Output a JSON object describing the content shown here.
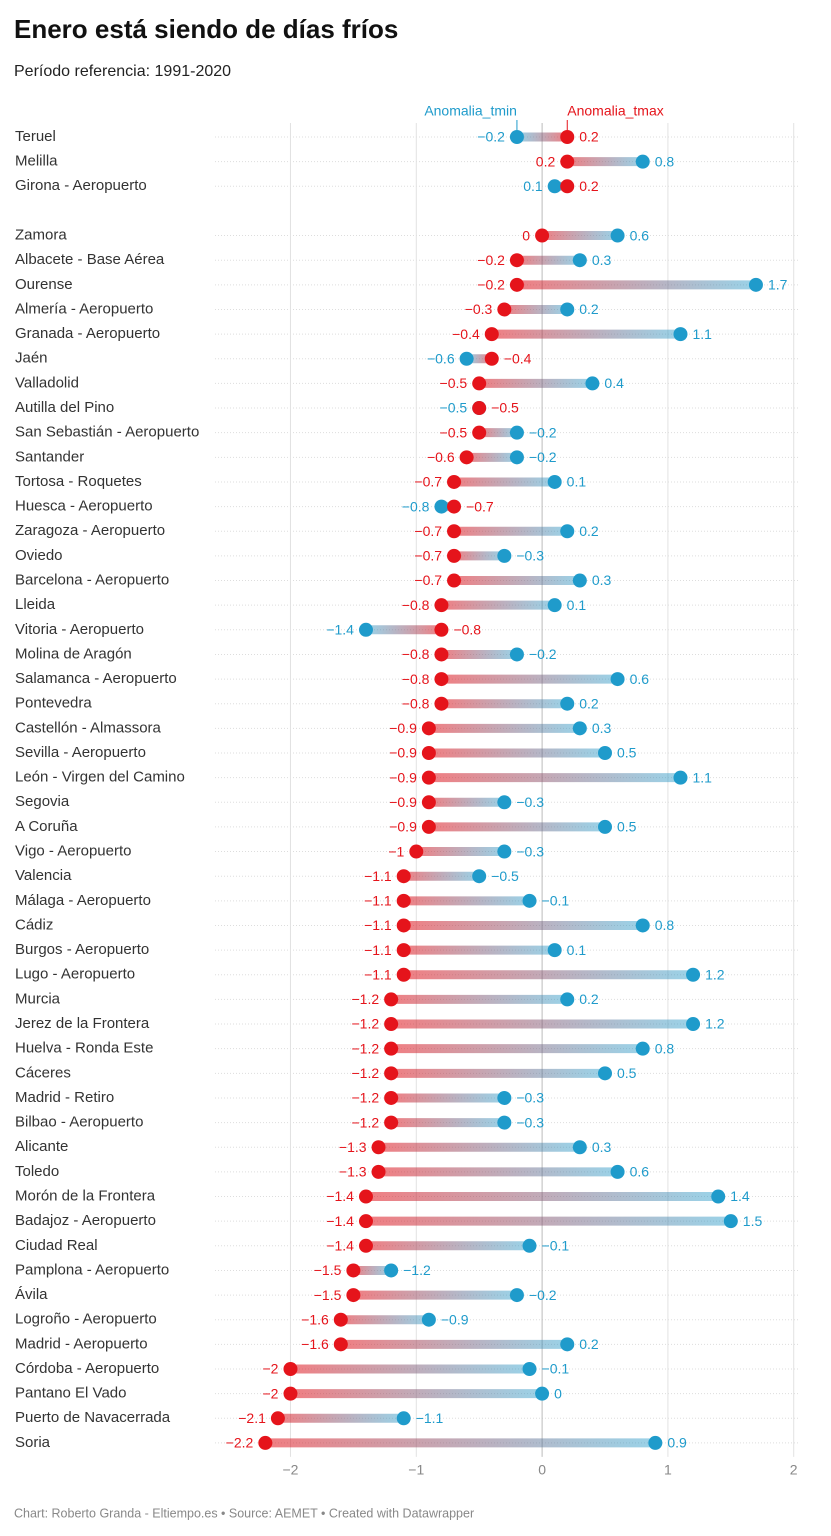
{
  "chart_data": {
    "type": "dumbbell",
    "title": "Enero está siendo de días fríos",
    "subtitle": "Período referencia: 1991-2020",
    "source": "Chart: Roberto Granda - Eltiempo.es • Source: AEMET • Created with Datawrapper",
    "categories": [
      "Teruel",
      "Melilla",
      "Girona - Aeropuerto",
      null,
      "Zamora",
      "Albacete - Base Aérea",
      "Ourense",
      "Almería - Aeropuerto",
      "Granada - Aeropuerto",
      "Jaén",
      "Valladolid",
      "Autilla del Pino",
      "San Sebastián - Aeropuerto",
      "Santander",
      "Tortosa - Roquetes",
      "Huesca - Aeropuerto",
      "Zaragoza - Aeropuerto",
      "Oviedo",
      "Barcelona - Aeropuerto",
      "Lleida",
      "Vitoria - Aeropuerto",
      "Molina de Aragón",
      "Salamanca - Aeropuerto",
      "Pontevedra",
      "Castellón - Almassora",
      "Sevilla - Aeropuerto",
      "León - Virgen del Camino",
      "Segovia",
      "A Coruña",
      "Vigo - Aeropuerto",
      "Valencia",
      "Málaga - Aeropuerto",
      "Cádiz",
      "Burgos - Aeropuerto",
      "Lugo - Aeropuerto",
      "Murcia",
      "Jerez de la Frontera",
      "Huelva - Ronda Este",
      "Cáceres",
      "Madrid - Retiro",
      "Bilbao - Aeropuerto",
      "Alicante",
      "Toledo",
      "Morón de la Frontera",
      "Badajoz - Aeropuerto",
      "Ciudad Real",
      "Pamplona - Aeropuerto",
      "Ávila",
      "Logroño - Aeropuerto",
      "Madrid - Aeropuerto",
      "Córdoba - Aeropuerto",
      "Pantano El Vado",
      "Puerto de Navacerrada",
      "Soria"
    ],
    "series": [
      {
        "name": "Anomalia_tmin",
        "color": "#1f9bcb",
        "values": [
          -0.2,
          0.8,
          0.1,
          null,
          0.6,
          0.3,
          1.7,
          0.2,
          1.1,
          -0.6,
          0.4,
          -0.5,
          -0.2,
          -0.2,
          0.1,
          -0.8,
          0.2,
          -0.3,
          0.3,
          0.1,
          -1.4,
          -0.2,
          0.6,
          0.2,
          0.3,
          0.5,
          1.1,
          -0.3,
          0.5,
          -0.3,
          -0.5,
          -0.1,
          0.8,
          0.1,
          1.2,
          0.2,
          1.2,
          0.8,
          0.5,
          -0.3,
          -0.3,
          0.3,
          0.6,
          1.4,
          1.5,
          -0.1,
          -1.2,
          -0.2,
          -0.9,
          0.2,
          -0.1,
          0,
          -1.1,
          0.9
        ],
        "value_labels": [
          "−0.2",
          "0.8",
          "0.1",
          null,
          "0.6",
          "0.3",
          "1.7",
          "0.2",
          "1.1",
          "−0.6",
          "0.4",
          "−0.5",
          "−0.2",
          "−0.2",
          "0.1",
          "−0.8",
          "0.2",
          "−0.3",
          "0.3",
          "0.1",
          "−1.4",
          "−0.2",
          "0.6",
          "0.2",
          "0.3",
          "0.5",
          "1.1",
          "−0.3",
          "0.5",
          "−0.3",
          "−0.5",
          "−0.1",
          "0.8",
          "0.1",
          "1.2",
          "0.2",
          "1.2",
          "0.8",
          "0.5",
          "−0.3",
          "−0.3",
          "0.3",
          "0.6",
          "1.4",
          "1.5",
          "−0.1",
          "−1.2",
          "−0.2",
          "−0.9",
          "0.2",
          "−0.1",
          "0",
          "−1.1",
          "0.9"
        ]
      },
      {
        "name": "Anomalia_tmax",
        "color": "#e5141b",
        "values": [
          0.2,
          0.2,
          0.2,
          null,
          0,
          -0.2,
          -0.2,
          -0.3,
          -0.4,
          -0.4,
          -0.5,
          -0.5,
          -0.5,
          -0.6,
          -0.7,
          -0.7,
          -0.7,
          -0.7,
          -0.7,
          -0.8,
          -0.8,
          -0.8,
          -0.8,
          -0.8,
          -0.9,
          -0.9,
          -0.9,
          -0.9,
          -0.9,
          -1,
          -1.1,
          -1.1,
          -1.1,
          -1.1,
          -1.1,
          -1.2,
          -1.2,
          -1.2,
          -1.2,
          -1.2,
          -1.2,
          -1.3,
          -1.3,
          -1.4,
          -1.4,
          -1.4,
          -1.5,
          -1.5,
          -1.6,
          -1.6,
          -2,
          -2,
          -2.1,
          -2.2
        ],
        "value_labels": [
          "0.2",
          "0.2",
          "0.2",
          null,
          "0",
          "−0.2",
          "−0.2",
          "−0.3",
          "−0.4",
          "−0.4",
          "−0.5",
          "−0.5",
          "−0.5",
          "−0.6",
          "−0.7",
          "−0.7",
          "−0.7",
          "−0.7",
          "−0.7",
          "−0.8",
          "−0.8",
          "−0.8",
          "−0.8",
          "−0.8",
          "−0.9",
          "−0.9",
          "−0.9",
          "−0.9",
          "−0.9",
          "−1",
          "−1.1",
          "−1.1",
          "−1.1",
          "−1.1",
          "−1.1",
          "−1.2",
          "−1.2",
          "−1.2",
          "−1.2",
          "−1.2",
          "−1.2",
          "−1.3",
          "−1.3",
          "−1.4",
          "−1.4",
          "−1.4",
          "−1.5",
          "−1.5",
          "−1.6",
          "−1.6",
          "−2",
          "−2",
          "−2.1",
          "−2.2"
        ]
      }
    ],
    "xlim": [
      -2.6,
      2.05
    ],
    "xticks": [
      {
        "value": -2,
        "label": "−2"
      },
      {
        "value": -1,
        "label": "−1"
      },
      0,
      1,
      2
    ],
    "grid": true
  }
}
